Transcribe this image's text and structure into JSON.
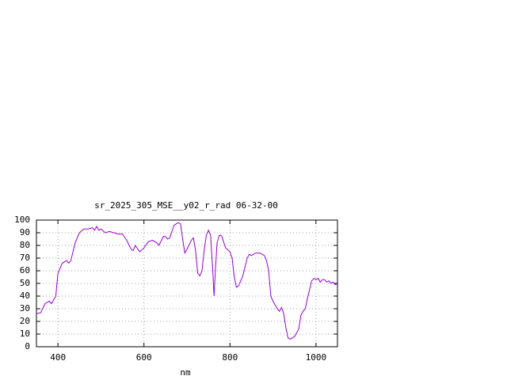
{
  "chart_data": {
    "type": "line",
    "title": "sr_2025_305_MSE__y02_r_rad 06-32-00",
    "x_label": "nm",
    "x": [
      350,
      360,
      370,
      380,
      385,
      395,
      400,
      410,
      420,
      425,
      430,
      440,
      450,
      460,
      470,
      480,
      485,
      490,
      495,
      500,
      510,
      520,
      530,
      540,
      550,
      560,
      570,
      575,
      580,
      590,
      600,
      610,
      620,
      630,
      635,
      645,
      650,
      655,
      660,
      670,
      680,
      685,
      690,
      695,
      700,
      710,
      715,
      720,
      725,
      730,
      735,
      740,
      745,
      750,
      755,
      760,
      763,
      766,
      770,
      775,
      780,
      785,
      790,
      800,
      805,
      810,
      815,
      820,
      825,
      830,
      840,
      845,
      850,
      860,
      870,
      880,
      885,
      890,
      895,
      900,
      905,
      910,
      915,
      920,
      925,
      930,
      935,
      940,
      945,
      950,
      960,
      965,
      970,
      975,
      980,
      990,
      995,
      1000,
      1005,
      1010,
      1015,
      1020,
      1025,
      1030,
      1035,
      1040,
      1045,
      1050
    ],
    "series": [
      {
        "color": "#9400d3",
        "values": [
          26,
          27,
          34,
          36,
          34,
          40,
          58,
          66,
          68,
          66,
          68,
          82,
          90,
          93,
          93,
          94,
          92,
          95,
          92,
          93,
          90,
          91,
          90,
          89,
          89,
          84,
          77,
          76,
          80,
          75,
          78,
          83,
          84,
          82,
          80,
          87,
          87,
          85,
          86,
          96,
          98,
          97,
          85,
          74,
          77,
          84,
          86,
          76,
          58,
          56,
          60,
          76,
          88,
          92,
          88,
          60,
          40,
          60,
          82,
          88,
          88,
          83,
          78,
          75,
          70,
          55,
          47,
          48,
          52,
          56,
          70,
          73,
          72,
          74,
          74,
          72,
          68,
          60,
          40,
          36,
          33,
          30,
          28,
          31,
          26,
          15,
          7,
          6,
          7,
          8,
          14,
          25,
          28,
          30,
          38,
          52,
          54,
          53,
          54,
          51,
          53,
          53,
          51,
          52,
          50,
          51,
          49,
          50
        ]
      }
    ],
    "xlim": [
      350,
      1050
    ],
    "xticks": [
      400,
      600,
      800,
      1000
    ],
    "ylim": [
      0,
      100
    ],
    "yticks": [
      0,
      10,
      20,
      30,
      40,
      50,
      60,
      70,
      80,
      90,
      100
    ],
    "grid": true
  }
}
